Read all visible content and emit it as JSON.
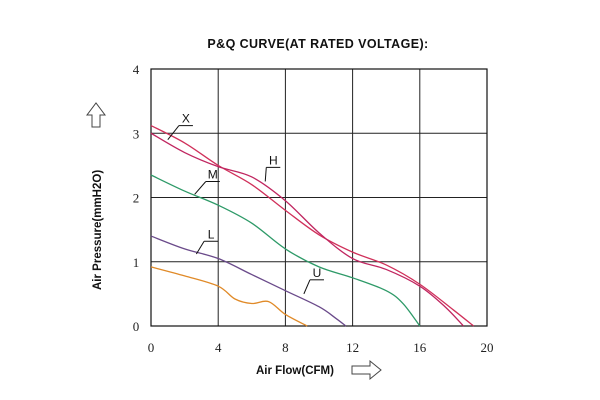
{
  "chart_data": {
    "type": "line",
    "title": "P&Q CURVE(AT RATED VOLTAGE):",
    "xlabel": "Air Flow(CFM)",
    "ylabel": "Air Pressure(mmH2O)",
    "xlim": [
      0,
      20
    ],
    "ylim": [
      0,
      4
    ],
    "x_ticks": [
      "0",
      "4",
      "8",
      "12",
      "16",
      "20"
    ],
    "y_ticks": [
      "0",
      "1",
      "2",
      "3",
      "4"
    ],
    "grid": true,
    "series": [
      {
        "name": "X",
        "color": "#d0305a",
        "points": [
          [
            0,
            3.12
          ],
          [
            2,
            2.85
          ],
          [
            4,
            2.5
          ],
          [
            6,
            2.2
          ],
          [
            8,
            1.8
          ],
          [
            10,
            1.42
          ],
          [
            12,
            1.15
          ],
          [
            14,
            0.95
          ],
          [
            16,
            0.65
          ],
          [
            18,
            0.25
          ],
          [
            19.2,
            0
          ]
        ]
      },
      {
        "name": "H",
        "color": "#c02660",
        "points": [
          [
            0,
            3.0
          ],
          [
            2,
            2.7
          ],
          [
            4,
            2.48
          ],
          [
            6,
            2.32
          ],
          [
            8,
            1.95
          ],
          [
            10,
            1.45
          ],
          [
            12,
            1.05
          ],
          [
            14,
            0.88
          ],
          [
            16,
            0.62
          ],
          [
            17.5,
            0.3
          ],
          [
            18.6,
            0
          ]
        ]
      },
      {
        "name": "M",
        "color": "#2e9a68",
        "points": [
          [
            0,
            2.35
          ],
          [
            2,
            2.1
          ],
          [
            4,
            1.88
          ],
          [
            6,
            1.6
          ],
          [
            8,
            1.2
          ],
          [
            10,
            0.92
          ],
          [
            12,
            0.75
          ],
          [
            14,
            0.55
          ],
          [
            15,
            0.35
          ],
          [
            16,
            0
          ]
        ]
      },
      {
        "name": "L",
        "color": "#6a4a8a",
        "points": [
          [
            0,
            1.4
          ],
          [
            2,
            1.2
          ],
          [
            4,
            1.05
          ],
          [
            6,
            0.8
          ],
          [
            8,
            0.55
          ],
          [
            10,
            0.3
          ],
          [
            11,
            0.12
          ],
          [
            11.6,
            0
          ]
        ]
      },
      {
        "name": "U",
        "color": "#e08a28",
        "points": [
          [
            0,
            0.92
          ],
          [
            2,
            0.78
          ],
          [
            4,
            0.62
          ],
          [
            5,
            0.42
          ],
          [
            6,
            0.35
          ],
          [
            7,
            0.38
          ],
          [
            8,
            0.18
          ],
          [
            9.3,
            0
          ]
        ]
      }
    ],
    "curve_labels": [
      {
        "text": "X",
        "x": 1.9,
        "y": 3.15,
        "tx": 1.0,
        "ty": 2.9
      },
      {
        "text": "H",
        "x": 7.1,
        "y": 2.5,
        "tx": 6.8,
        "ty": 2.25
      },
      {
        "text": "M",
        "x": 3.5,
        "y": 2.28,
        "tx": 2.6,
        "ty": 2.05
      },
      {
        "text": "L",
        "x": 3.4,
        "y": 1.35,
        "tx": 2.7,
        "ty": 1.12
      },
      {
        "text": "U",
        "x": 9.7,
        "y": 0.75,
        "tx": 9.1,
        "ty": 0.5
      }
    ]
  }
}
